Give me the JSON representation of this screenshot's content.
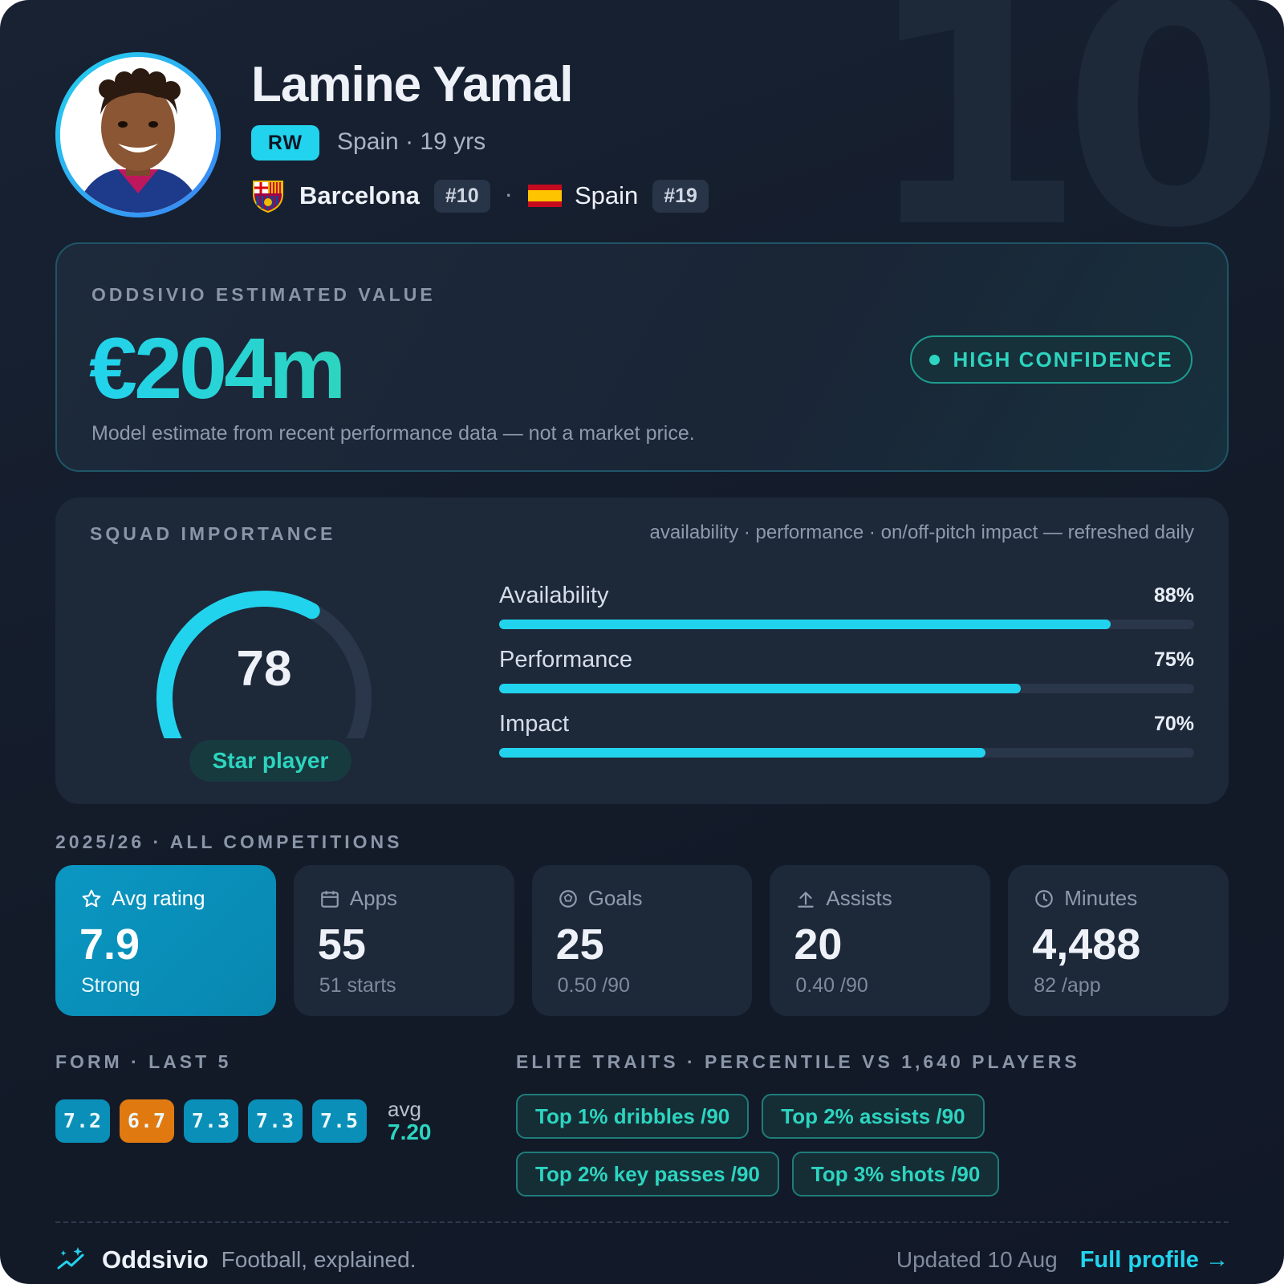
{
  "player": {
    "shirt_number_bg": "10",
    "name": "Lamine Yamal",
    "position": "RW",
    "meta": "Spain · 19 yrs",
    "club": "Barcelona",
    "club_number": "#10",
    "separator": "·",
    "national_team": "Spain",
    "national_number": "#19",
    "club_crest_icon": "fc-barcelona-crest-icon",
    "flag_icon": "spain-flag-icon"
  },
  "value": {
    "label": "ODDSIVIO ESTIMATED VALUE",
    "amount": "€204m",
    "note": "Model estimate from recent performance data — not a market price.",
    "confidence": "HIGH CONFIDENCE"
  },
  "squad": {
    "label": "SQUAD IMPORTANCE",
    "subtitle": "availability · performance · on/off-pitch impact — refreshed daily",
    "score": "78",
    "score_fraction": 0.78,
    "tier": "Star player",
    "bars": [
      {
        "label": "Availability",
        "pct_text": "88%",
        "value": 88
      },
      {
        "label": "Performance",
        "pct_text": "75%",
        "value": 75
      },
      {
        "label": "Impact",
        "pct_text": "70%",
        "value": 70
      }
    ]
  },
  "season": {
    "label": "2025/26 · ALL COMPETITIONS",
    "tiles": [
      {
        "icon": "star-icon",
        "title": "Avg rating",
        "value": "7.9",
        "sub": "Strong"
      },
      {
        "icon": "calendar-icon",
        "title": "Apps",
        "value": "55",
        "sub": "51 starts"
      },
      {
        "icon": "football-icon",
        "title": "Goals",
        "value": "25",
        "sub": "0.50 /90"
      },
      {
        "icon": "arrow-up-icon",
        "title": "Assists",
        "value": "20",
        "sub": "0.40 /90"
      },
      {
        "icon": "clock-icon",
        "title": "Minutes",
        "value": "4,488",
        "sub": "82 /app"
      }
    ]
  },
  "form": {
    "label": "FORM · LAST 5",
    "ratings": [
      "7.2",
      "6.7",
      "7.3",
      "7.3",
      "7.5"
    ],
    "avg_label": "avg",
    "avg_value": "7.20"
  },
  "traits": {
    "label": "ELITE TRAITS · PERCENTILE VS 1,640 PLAYERS",
    "items": [
      "Top 1% dribbles /90",
      "Top 2% assists /90",
      "Top 2% key passes /90",
      "Top 3% shots /90"
    ]
  },
  "footer": {
    "brand": "Oddsivio",
    "tagline": "Football, explained.",
    "updated": "Updated 10 Aug",
    "link": "Full profile →"
  },
  "colors": {
    "accent": "#22d3ee",
    "teal": "#2dd4bf",
    "warn": "#e07a10",
    "card_bg": "#131b29"
  }
}
